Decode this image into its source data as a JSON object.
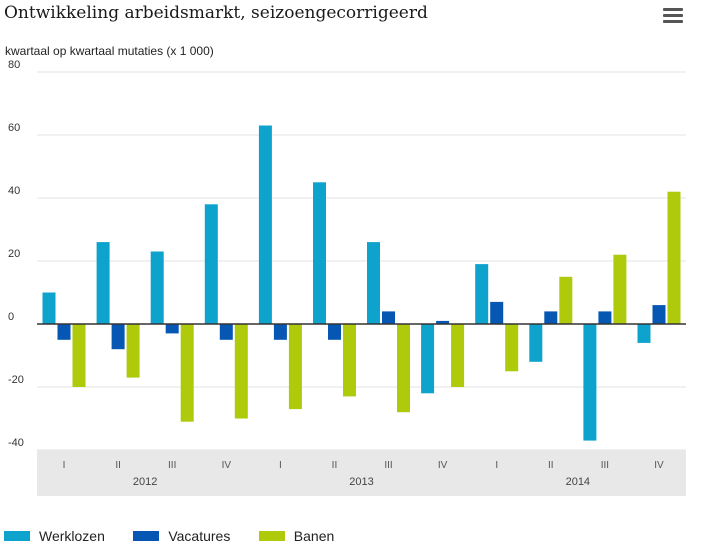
{
  "header": {
    "title": "Ontwikkeling arbeidsmarkt, seizoengecorrigeerd",
    "subtitle": "kwartaal op kwartaal mutaties (x 1 000)",
    "menu_icon": "hamburger-menu-icon"
  },
  "colors": {
    "werklozen": "#0ea3cd",
    "vacatures": "#0656b3",
    "banen": "#afca0b",
    "grid": "#e3e3e3",
    "axis_band": "#e8e8e8"
  },
  "chart_data": {
    "type": "bar",
    "title": "Ontwikkeling arbeidsmarkt, seizoengecorrigeerd",
    "subtitle": "kwartaal op kwartaal mutaties (x 1 000)",
    "categories": [
      "I",
      "II",
      "III",
      "IV",
      "I",
      "II",
      "III",
      "IV",
      "I",
      "II",
      "III",
      "IV"
    ],
    "years": [
      {
        "label": "2012",
        "quarters": 4
      },
      {
        "label": "2013",
        "quarters": 4
      },
      {
        "label": "2014",
        "quarters": 4
      }
    ],
    "series": [
      {
        "name": "Werklozen",
        "values": [
          10,
          26,
          23,
          38,
          63,
          45,
          26,
          -22,
          19,
          -12,
          -37,
          -6
        ]
      },
      {
        "name": "Vacatures",
        "values": [
          -5,
          -8,
          -3,
          -5,
          -5,
          -5,
          4,
          1,
          7,
          4,
          4,
          6
        ]
      },
      {
        "name": "Banen",
        "values": [
          -20,
          -17,
          -31,
          -30,
          -27,
          -23,
          -28,
          -20,
          -15,
          15,
          22,
          42
        ]
      }
    ],
    "ylim": [
      -40,
      80
    ],
    "yticks": [
      -40,
      -20,
      0,
      20,
      40,
      60,
      80
    ],
    "grid": true,
    "legend": "bottom-left"
  }
}
